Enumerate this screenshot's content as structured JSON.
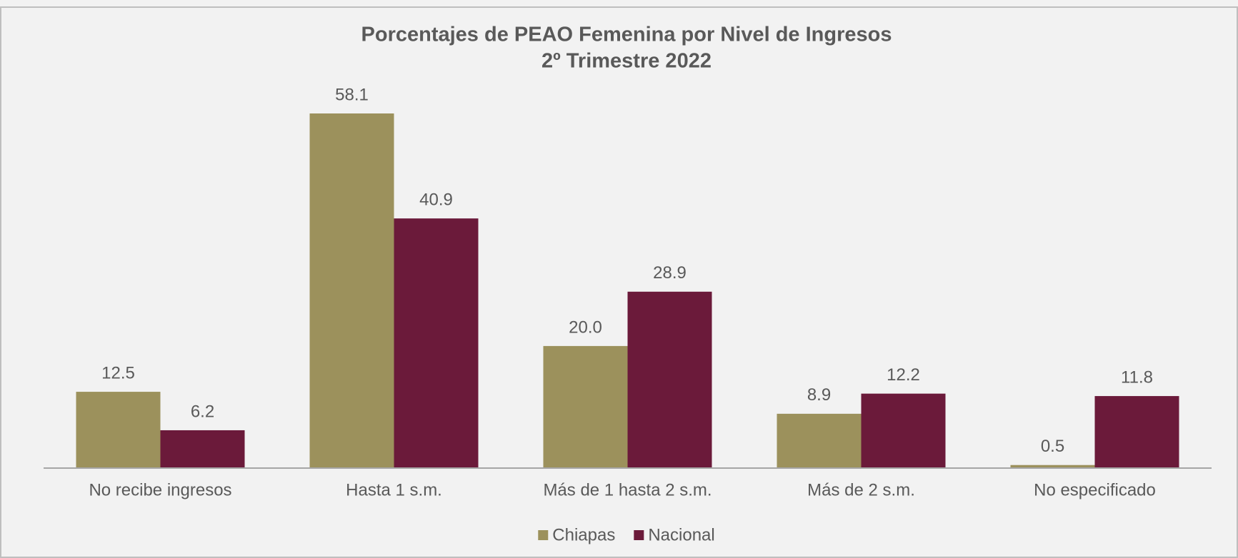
{
  "chart_data": {
    "type": "bar",
    "title": "Porcentajes de PEAO Femenina por Nivel de Ingresos",
    "subtitle": "2º Trimestre 2022",
    "categories": [
      "No recibe ingresos",
      "Hasta 1 s.m.",
      "Más de 1 hasta 2 s.m.",
      "Más de 2 s.m.",
      "No especificado"
    ],
    "series": [
      {
        "name": "Chiapas",
        "color": "#9c915c",
        "values": [
          12.5,
          58.1,
          20.0,
          8.9,
          0.5
        ],
        "value_labels": [
          "12.5",
          "58.1",
          "20.0",
          "8.9",
          "0.5"
        ]
      },
      {
        "name": "Nacional",
        "color": "#6b1a3a",
        "values": [
          6.2,
          40.9,
          28.9,
          12.2,
          11.8
        ],
        "value_labels": [
          "6.2",
          "40.9",
          "28.9",
          "12.2",
          "11.8"
        ]
      }
    ],
    "legend": "bottom"
  }
}
